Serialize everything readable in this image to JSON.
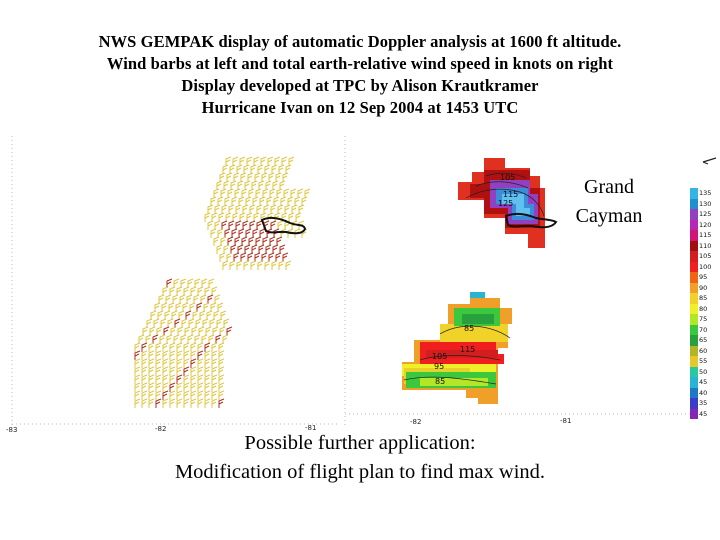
{
  "title": {
    "line1": "NWS GEMPAK display of automatic Doppler analysis at 1600 ft altitude.",
    "line2": "Wind barbs at left and total earth-relative wind speed in knots on right",
    "line3": "Display developed at TPC by Alison Krautkramer",
    "line4": "Hurricane Ivan on 12 Sep 2004 at 1453 UTC"
  },
  "map": {
    "island_label_line1": "Grand",
    "island_label_line2": "Cayman",
    "left_panel_lon_ticks": [
      "-83",
      "-82",
      "-81"
    ],
    "right_panel_lon_ticks": [
      "-82",
      "-81"
    ],
    "contour_labels_north": [
      "105",
      "115",
      "125"
    ],
    "contour_labels_south": [
      "85",
      "115",
      "105",
      "95",
      "85"
    ],
    "barb_color": "#e0c640",
    "barb_color_strong": "#b03020"
  },
  "colorbar": {
    "entries": [
      {
        "label": "135",
        "color": "#32b4e6"
      },
      {
        "label": "130",
        "color": "#1e90d2"
      },
      {
        "label": "125",
        "color": "#9040c0"
      },
      {
        "label": "120",
        "color": "#b428b4"
      },
      {
        "label": "115",
        "color": "#d01478"
      },
      {
        "label": "110",
        "color": "#a01010"
      },
      {
        "label": "105",
        "color": "#d21e1e"
      },
      {
        "label": "100",
        "color": "#f01e1e"
      },
      {
        "label": "95",
        "color": "#f06414"
      },
      {
        "label": "90",
        "color": "#f0a028"
      },
      {
        "label": "85",
        "color": "#f0d228"
      },
      {
        "label": "80",
        "color": "#f0f028"
      },
      {
        "label": "75",
        "color": "#b4e628"
      },
      {
        "label": "70",
        "color": "#3cc83c"
      },
      {
        "label": "65",
        "color": "#28a03c"
      },
      {
        "label": "60",
        "color": "#b4b428"
      },
      {
        "label": "55",
        "color": "#e6c828"
      },
      {
        "label": "50",
        "color": "#28c8a0"
      },
      {
        "label": "45",
        "color": "#28b4d2"
      },
      {
        "label": "40",
        "color": "#1e78c8"
      },
      {
        "label": "35",
        "color": "#3c3cc8"
      },
      {
        "label": "45",
        "color": "#8228b4"
      }
    ]
  },
  "footer": {
    "line1": "Possible further application:",
    "line2": "Modification of flight plan to find max wind."
  }
}
